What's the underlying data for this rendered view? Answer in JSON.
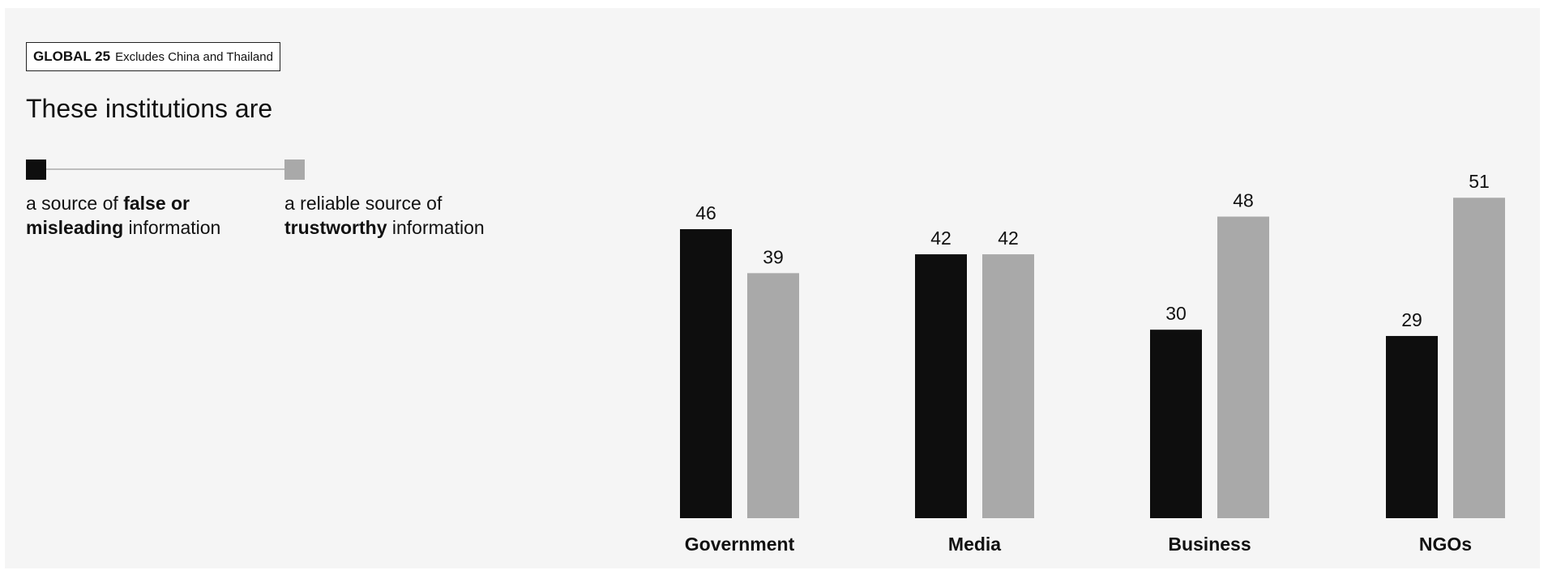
{
  "badge": {
    "region": "GLOBAL 25",
    "note": "Excludes China and Thailand"
  },
  "headline": "These institutions are",
  "legend": {
    "false_pre": "a source of ",
    "false_bold_1": "false or",
    "false_bold_2": "misleading",
    "false_post": " information",
    "reliable_pre": "a reliable source of",
    "reliable_bold": "trustworthy",
    "reliable_post": " information"
  },
  "colors": {
    "false_source": "#0e0e0e",
    "reliable_source": "#a9a9a9",
    "background": "#f5f5f5"
  },
  "chart_data": {
    "type": "bar",
    "categories": [
      "Government",
      "Media",
      "Business",
      "NGOs"
    ],
    "series": [
      {
        "values": [
          46,
          42,
          30,
          29
        ],
        "color": "#0e0e0e"
      },
      {
        "values": [
          39,
          42,
          48,
          51
        ],
        "color": "#a9a9a9"
      }
    ],
    "ylim": [
      0,
      60
    ],
    "grid": false,
    "legend_position": "top-left"
  }
}
